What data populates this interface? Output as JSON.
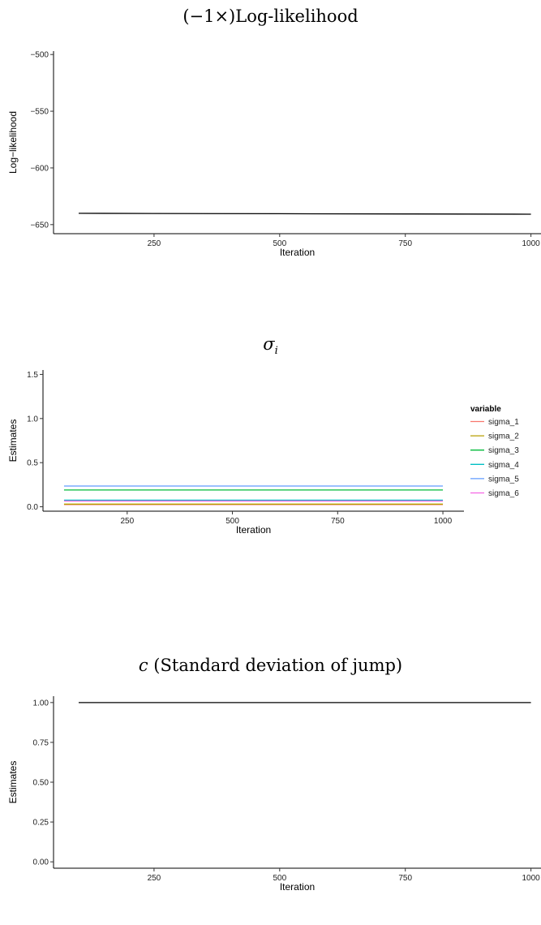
{
  "chart_data": [
    {
      "type": "line",
      "title_prefix": "(−1×)",
      "title_main": "Log-likelihood",
      "xlabel": "Iteration",
      "ylabel": "Log−likelihood",
      "xlim": [
        50,
        1020
      ],
      "ylim": [
        -658,
        -497
      ],
      "xticks": [
        250,
        500,
        750,
        1000
      ],
      "yticks": [
        -500,
        -550,
        -600,
        -650
      ],
      "ytick_labels": [
        "−500",
        "−550",
        "−600",
        "−650"
      ],
      "grid": false,
      "series": [
        {
          "x": [
            100,
            250,
            500,
            750,
            1000
          ],
          "y": [
            -640,
            -640.2,
            -640.4,
            -640.6,
            -640.8
          ],
          "color": "#000000"
        }
      ]
    },
    {
      "type": "line",
      "title_main": "σ",
      "title_sub": "i",
      "xlabel": "Iteration",
      "ylabel": "Estimates",
      "xlim": [
        50,
        1050
      ],
      "ylim": [
        -0.05,
        1.55
      ],
      "xticks": [
        250,
        500,
        750,
        1000
      ],
      "yticks": [
        0.0,
        0.5,
        1.0,
        1.5
      ],
      "ytick_labels": [
        "0.0",
        "0.5",
        "1.0",
        "1.5"
      ],
      "grid": false,
      "legend_title": "variable",
      "legend_position": "right",
      "series": [
        {
          "name": "sigma_1",
          "x": [
            100,
            1000
          ],
          "y": [
            0.025,
            0.025
          ],
          "color": "#F8766D"
        },
        {
          "name": "sigma_2",
          "x": [
            100,
            1000
          ],
          "y": [
            0.03,
            0.03
          ],
          "color": "#B79F00"
        },
        {
          "name": "sigma_3",
          "x": [
            100,
            1000
          ],
          "y": [
            0.19,
            0.19
          ],
          "color": "#00BA38"
        },
        {
          "name": "sigma_4",
          "x": [
            100,
            1000
          ],
          "y": [
            0.075,
            0.075
          ],
          "color": "#00BFC4"
        },
        {
          "name": "sigma_5",
          "x": [
            100,
            1000
          ],
          "y": [
            0.235,
            0.235
          ],
          "color": "#619CFF"
        },
        {
          "name": "sigma_6",
          "x": [
            100,
            1000
          ],
          "y": [
            0.065,
            0.065
          ],
          "color": "#F564E3"
        }
      ]
    },
    {
      "type": "line",
      "title_var": "c",
      "title_main": " (Standard deviation of jump)",
      "xlabel": "Iteration",
      "ylabel": "Estimates",
      "xlim": [
        50,
        1020
      ],
      "ylim": [
        -0.04,
        1.04
      ],
      "xticks": [
        250,
        500,
        750,
        1000
      ],
      "yticks": [
        0.0,
        0.25,
        0.5,
        0.75,
        1.0
      ],
      "ytick_labels": [
        "0.00",
        "0.25",
        "0.50",
        "0.75",
        "1.00"
      ],
      "grid": false,
      "series": [
        {
          "x": [
            100,
            1000
          ],
          "y": [
            1.0,
            1.0
          ],
          "color": "#000000"
        }
      ]
    }
  ]
}
